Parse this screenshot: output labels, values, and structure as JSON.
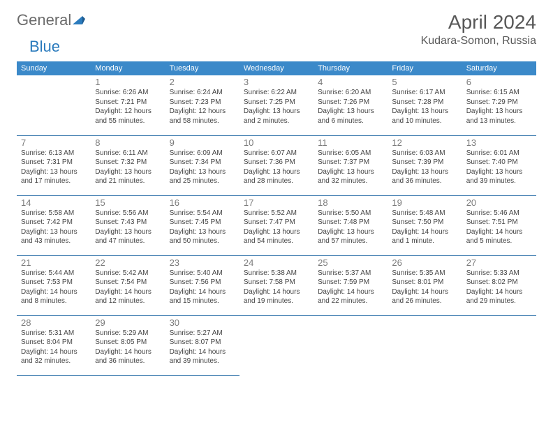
{
  "brand": {
    "part1": "General",
    "part2": "Blue"
  },
  "title": "April 2024",
  "location": "Kudara-Somon, Russia",
  "day_labels": [
    "Sunday",
    "Monday",
    "Tuesday",
    "Wednesday",
    "Thursday",
    "Friday",
    "Saturday"
  ],
  "header_bg": "#3b89c9",
  "header_fg": "#ffffff",
  "divider_color": "#2b6fa8",
  "text_color": "#444444",
  "daynum_color": "#7b7b7b",
  "title_color": "#585858",
  "logo_gray": "#6b6b6b",
  "logo_blue": "#2b7bbd",
  "weeks": [
    [
      null,
      {
        "n": "1",
        "sunrise": "6:26 AM",
        "sunset": "7:21 PM",
        "daylight": "12 hours and 55 minutes."
      },
      {
        "n": "2",
        "sunrise": "6:24 AM",
        "sunset": "7:23 PM",
        "daylight": "12 hours and 58 minutes."
      },
      {
        "n": "3",
        "sunrise": "6:22 AM",
        "sunset": "7:25 PM",
        "daylight": "13 hours and 2 minutes."
      },
      {
        "n": "4",
        "sunrise": "6:20 AM",
        "sunset": "7:26 PM",
        "daylight": "13 hours and 6 minutes."
      },
      {
        "n": "5",
        "sunrise": "6:17 AM",
        "sunset": "7:28 PM",
        "daylight": "13 hours and 10 minutes."
      },
      {
        "n": "6",
        "sunrise": "6:15 AM",
        "sunset": "7:29 PM",
        "daylight": "13 hours and 13 minutes."
      }
    ],
    [
      {
        "n": "7",
        "sunrise": "6:13 AM",
        "sunset": "7:31 PM",
        "daylight": "13 hours and 17 minutes."
      },
      {
        "n": "8",
        "sunrise": "6:11 AM",
        "sunset": "7:32 PM",
        "daylight": "13 hours and 21 minutes."
      },
      {
        "n": "9",
        "sunrise": "6:09 AM",
        "sunset": "7:34 PM",
        "daylight": "13 hours and 25 minutes."
      },
      {
        "n": "10",
        "sunrise": "6:07 AM",
        "sunset": "7:36 PM",
        "daylight": "13 hours and 28 minutes."
      },
      {
        "n": "11",
        "sunrise": "6:05 AM",
        "sunset": "7:37 PM",
        "daylight": "13 hours and 32 minutes."
      },
      {
        "n": "12",
        "sunrise": "6:03 AM",
        "sunset": "7:39 PM",
        "daylight": "13 hours and 36 minutes."
      },
      {
        "n": "13",
        "sunrise": "6:01 AM",
        "sunset": "7:40 PM",
        "daylight": "13 hours and 39 minutes."
      }
    ],
    [
      {
        "n": "14",
        "sunrise": "5:58 AM",
        "sunset": "7:42 PM",
        "daylight": "13 hours and 43 minutes."
      },
      {
        "n": "15",
        "sunrise": "5:56 AM",
        "sunset": "7:43 PM",
        "daylight": "13 hours and 47 minutes."
      },
      {
        "n": "16",
        "sunrise": "5:54 AM",
        "sunset": "7:45 PM",
        "daylight": "13 hours and 50 minutes."
      },
      {
        "n": "17",
        "sunrise": "5:52 AM",
        "sunset": "7:47 PM",
        "daylight": "13 hours and 54 minutes."
      },
      {
        "n": "18",
        "sunrise": "5:50 AM",
        "sunset": "7:48 PM",
        "daylight": "13 hours and 57 minutes."
      },
      {
        "n": "19",
        "sunrise": "5:48 AM",
        "sunset": "7:50 PM",
        "daylight": "14 hours and 1 minute."
      },
      {
        "n": "20",
        "sunrise": "5:46 AM",
        "sunset": "7:51 PM",
        "daylight": "14 hours and 5 minutes."
      }
    ],
    [
      {
        "n": "21",
        "sunrise": "5:44 AM",
        "sunset": "7:53 PM",
        "daylight": "14 hours and 8 minutes."
      },
      {
        "n": "22",
        "sunrise": "5:42 AM",
        "sunset": "7:54 PM",
        "daylight": "14 hours and 12 minutes."
      },
      {
        "n": "23",
        "sunrise": "5:40 AM",
        "sunset": "7:56 PM",
        "daylight": "14 hours and 15 minutes."
      },
      {
        "n": "24",
        "sunrise": "5:38 AM",
        "sunset": "7:58 PM",
        "daylight": "14 hours and 19 minutes."
      },
      {
        "n": "25",
        "sunrise": "5:37 AM",
        "sunset": "7:59 PM",
        "daylight": "14 hours and 22 minutes."
      },
      {
        "n": "26",
        "sunrise": "5:35 AM",
        "sunset": "8:01 PM",
        "daylight": "14 hours and 26 minutes."
      },
      {
        "n": "27",
        "sunrise": "5:33 AM",
        "sunset": "8:02 PM",
        "daylight": "14 hours and 29 minutes."
      }
    ],
    [
      {
        "n": "28",
        "sunrise": "5:31 AM",
        "sunset": "8:04 PM",
        "daylight": "14 hours and 32 minutes."
      },
      {
        "n": "29",
        "sunrise": "5:29 AM",
        "sunset": "8:05 PM",
        "daylight": "14 hours and 36 minutes."
      },
      {
        "n": "30",
        "sunrise": "5:27 AM",
        "sunset": "8:07 PM",
        "daylight": "14 hours and 39 minutes."
      },
      null,
      null,
      null,
      null
    ]
  ],
  "labels": {
    "sunrise": "Sunrise:",
    "sunset": "Sunset:",
    "daylight": "Daylight:"
  }
}
